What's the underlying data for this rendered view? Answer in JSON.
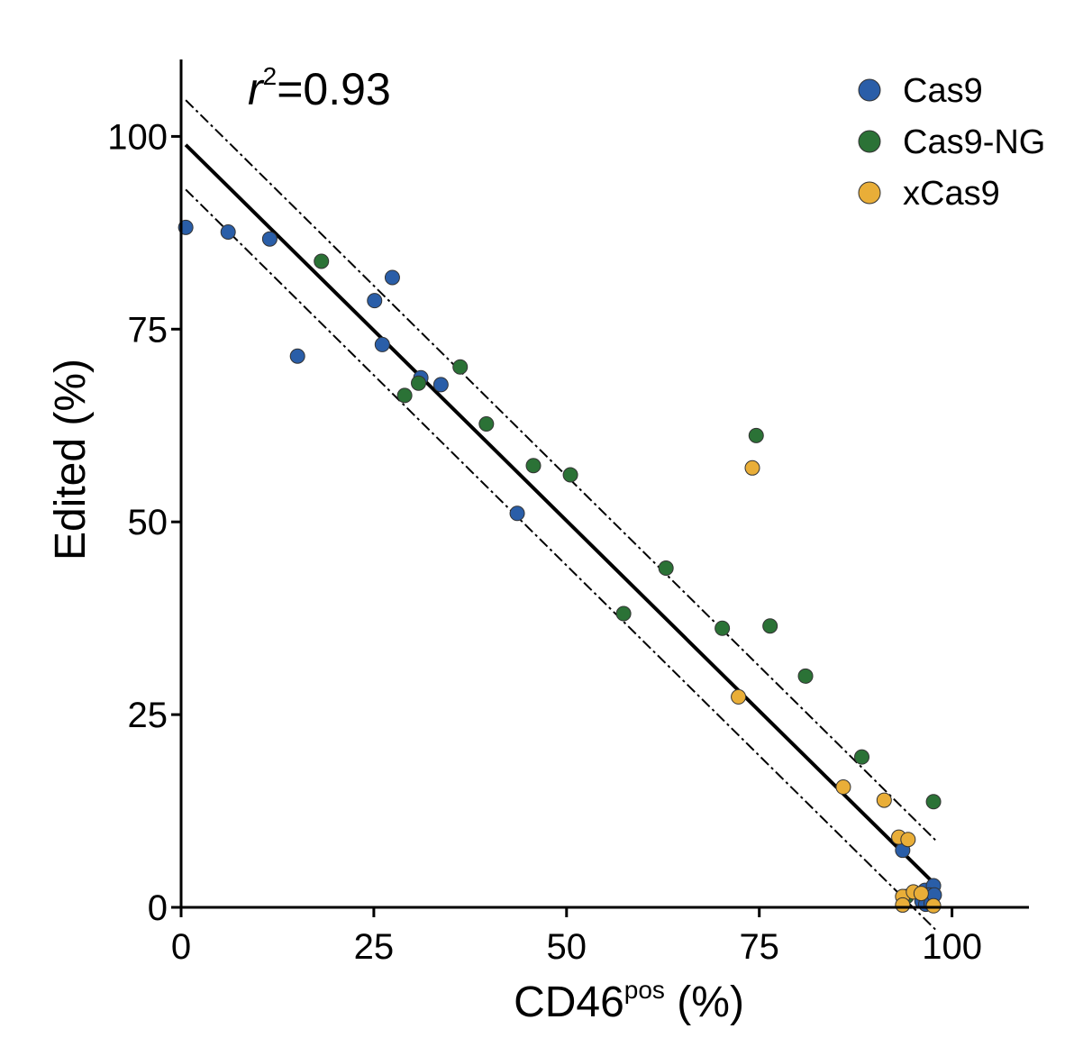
{
  "chart_data": {
    "type": "scatter",
    "annotation": {
      "r_symbol": "r",
      "sup": "2",
      "value_text": "=0.93",
      "r2": 0.93
    },
    "xlabel": {
      "main": "CD46",
      "sup": "pos",
      "suffix": " (%)"
    },
    "ylabel": "Edited (%)",
    "xlim": [
      0,
      110
    ],
    "ylim": [
      0,
      110
    ],
    "xticks": [
      0,
      25,
      50,
      75,
      100
    ],
    "yticks": [
      0,
      25,
      50,
      75,
      100
    ],
    "xtick_labels": [
      "0",
      "25",
      "50",
      "75",
      "100"
    ],
    "ytick_labels": [
      "0",
      "25",
      "50",
      "75",
      "100"
    ],
    "legend_position": "top-right",
    "series": [
      {
        "name": "Cas9",
        "color": "#2a5ea8",
        "points": [
          [
            0.6,
            88.2
          ],
          [
            6.1,
            87.6
          ],
          [
            11.5,
            86.7
          ],
          [
            15.1,
            71.5
          ],
          [
            25.1,
            78.7
          ],
          [
            26.1,
            73.0
          ],
          [
            27.4,
            81.7
          ],
          [
            31.1,
            68.7
          ],
          [
            33.7,
            67.8
          ],
          [
            43.6,
            51.1
          ],
          [
            93.6,
            7.4
          ],
          [
            96.5,
            2.2
          ],
          [
            97.6,
            2.8
          ],
          [
            96.1,
            0.8
          ],
          [
            97.1,
            1.6
          ],
          [
            96.6,
            0.4
          ],
          [
            97.3,
            0.5
          ],
          [
            97.7,
            1.6
          ]
        ]
      },
      {
        "name": "Cas9-NG",
        "color": "#2b7236",
        "points": [
          [
            18.2,
            83.8
          ],
          [
            29.0,
            66.4
          ],
          [
            30.8,
            68.0
          ],
          [
            36.2,
            70.1
          ],
          [
            39.6,
            62.7
          ],
          [
            45.7,
            57.3
          ],
          [
            50.5,
            56.1
          ],
          [
            57.4,
            38.1
          ],
          [
            62.9,
            44.0
          ],
          [
            70.2,
            36.2
          ],
          [
            74.6,
            61.2
          ],
          [
            76.4,
            36.5
          ],
          [
            81.0,
            30.0
          ],
          [
            88.3,
            19.5
          ],
          [
            97.6,
            13.7
          ],
          [
            94.1,
            1.4
          ]
        ]
      },
      {
        "name": "xCas9",
        "color": "#e9ae38",
        "points": [
          [
            74.1,
            57.0
          ],
          [
            72.3,
            27.3
          ],
          [
            85.9,
            15.6
          ],
          [
            91.2,
            13.9
          ],
          [
            93.1,
            9.1
          ],
          [
            94.3,
            8.8
          ],
          [
            93.6,
            1.4
          ],
          [
            95.0,
            2.0
          ],
          [
            93.6,
            0.3
          ],
          [
            96.0,
            1.8
          ],
          [
            97.6,
            0.2
          ]
        ]
      }
    ],
    "fit_line": {
      "slope": -0.987,
      "intercept": 99.5,
      "x_range": [
        0.6,
        97.9
      ]
    },
    "confidence_band": {
      "offset": 5.8
    }
  }
}
